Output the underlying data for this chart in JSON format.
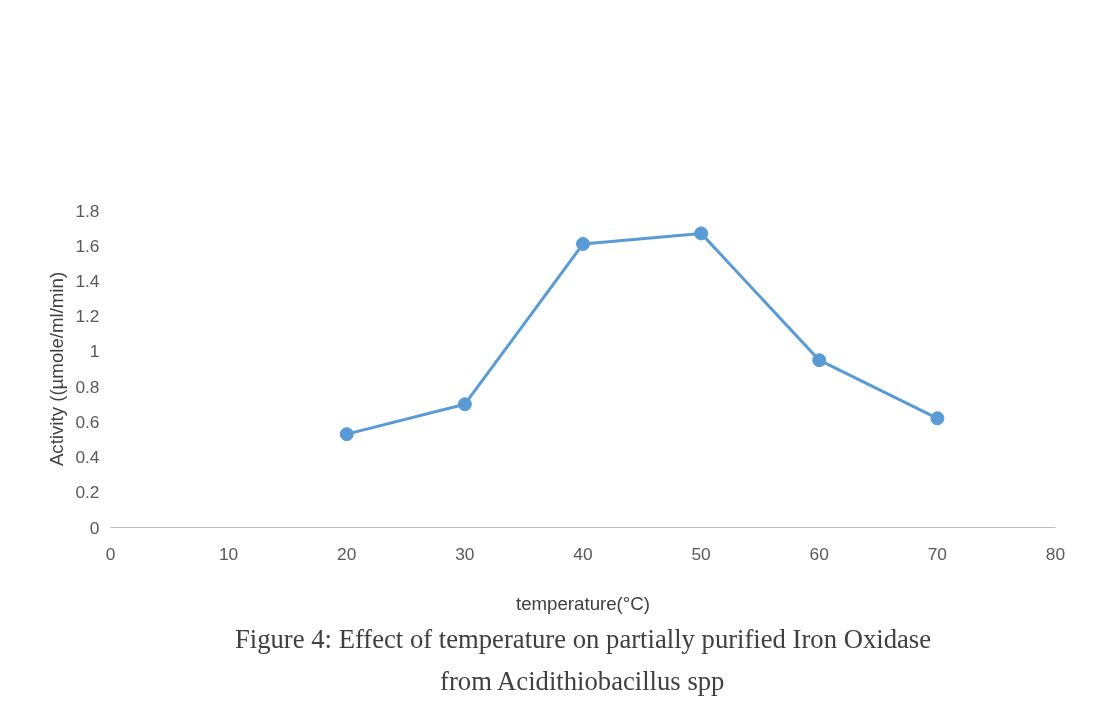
{
  "chart_data": {
    "type": "line",
    "xlabel": "temperature(°C)",
    "ylabel": "Activity ((µmole/ml/min)",
    "x": [
      20,
      30,
      40,
      50,
      60,
      70
    ],
    "series": [
      {
        "color": "#5b9bd5",
        "values": [
          0.53,
          0.7,
          1.61,
          1.67,
          0.95,
          0.62
        ]
      }
    ],
    "xlim": [
      0,
      80
    ],
    "xticks": [
      0,
      10,
      20,
      30,
      40,
      50,
      60,
      70,
      80
    ],
    "ylim": [
      0,
      1.8
    ],
    "yticks": [
      0,
      0.2,
      0.4,
      0.6,
      0.8,
      1,
      1.2,
      1.4,
      1.6,
      1.8
    ],
    "marker": "circle",
    "line_style": "solid",
    "annotations": [
      "Figure 4: Effect of temperature on partially purified Iron Oxidase",
      "from Acidithiobacillus spp"
    ]
  }
}
